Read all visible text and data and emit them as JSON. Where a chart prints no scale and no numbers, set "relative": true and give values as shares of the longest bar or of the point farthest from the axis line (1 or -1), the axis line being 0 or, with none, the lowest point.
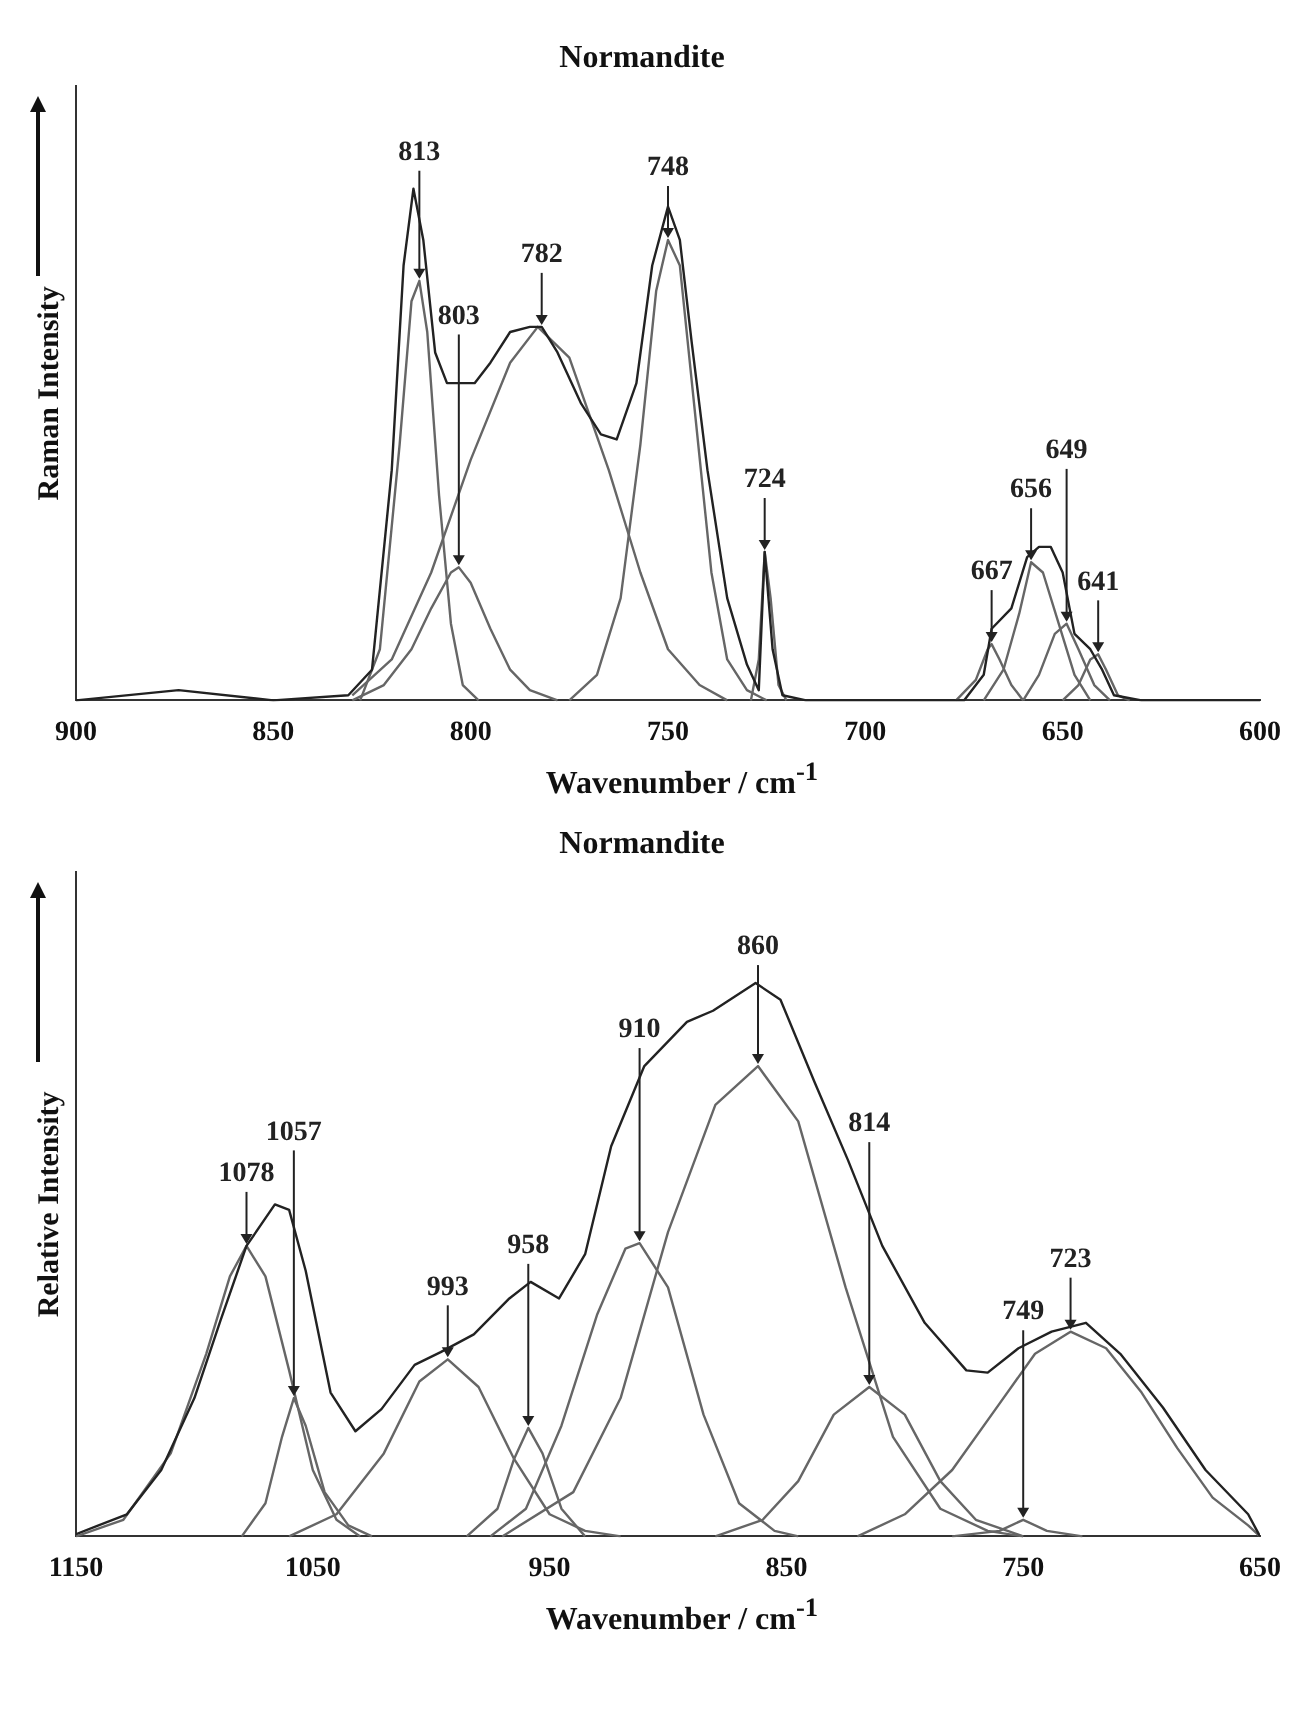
{
  "chart_data": [
    {
      "type": "line",
      "title": "Normandite",
      "xlabel": "Wavenumber / cm$^{-1}$",
      "ylabel": "Raman Intensity",
      "relative": true,
      "xlim": [
        900,
        600
      ],
      "xticks": [
        900,
        850,
        800,
        750,
        700,
        650,
        600
      ],
      "grid": false,
      "legend": false,
      "marker": "none",
      "line_style": "solid",
      "series": [
        {
          "color": "#222222",
          "x": [
            900,
            874,
            850,
            831,
            825,
            820,
            817,
            814.5,
            812,
            809,
            806,
            803,
            799,
            795,
            790,
            785,
            782,
            778,
            772,
            767,
            763,
            758,
            754,
            750,
            747,
            744,
            740,
            735,
            730,
            727,
            725.5,
            723.5,
            721,
            715,
            700,
            675,
            670,
            668,
            663,
            659,
            656,
            653,
            650,
            647,
            643,
            640,
            637,
            630,
            600
          ],
          "values": [
            0,
            0.02,
            0,
            0.01,
            0.06,
            0.45,
            0.85,
            1,
            0.9,
            0.68,
            0.62,
            0.62,
            0.62,
            0.66,
            0.72,
            0.73,
            0.73,
            0.68,
            0.58,
            0.52,
            0.51,
            0.62,
            0.85,
            0.965,
            0.9,
            0.7,
            0.45,
            0.2,
            0.07,
            0.02,
            0.29,
            0.1,
            0.01,
            0,
            0,
            0,
            0.05,
            0.14,
            0.18,
            0.28,
            0.3,
            0.3,
            0.25,
            0.13,
            0.1,
            0.06,
            0.01,
            0,
            0
          ]
        },
        {
          "color": "#666666",
          "x": [
            828,
            823,
            818,
            815,
            813,
            811,
            808,
            805,
            802,
            798
          ],
          "values": [
            0,
            0.1,
            0.5,
            0.78,
            0.82,
            0.72,
            0.4,
            0.15,
            0.03,
            0
          ]
        },
        {
          "color": "#666666",
          "x": [
            830,
            822,
            815,
            810,
            805,
            803,
            800,
            795,
            790,
            785,
            778
          ],
          "values": [
            0,
            0.03,
            0.1,
            0.18,
            0.25,
            0.26,
            0.23,
            0.14,
            0.06,
            0.02,
            0
          ]
        },
        {
          "color": "#666666",
          "x": [
            830,
            820,
            810,
            800,
            790,
            783,
            775,
            765,
            757,
            750,
            742,
            735
          ],
          "values": [
            0.01,
            0.08,
            0.25,
            0.47,
            0.66,
            0.73,
            0.67,
            0.45,
            0.25,
            0.1,
            0.03,
            0
          ]
        },
        {
          "color": "#666666",
          "x": [
            775,
            768,
            762,
            757,
            753,
            750,
            747,
            743,
            739,
            735,
            730,
            725
          ],
          "values": [
            0,
            0.05,
            0.2,
            0.5,
            0.8,
            0.9,
            0.85,
            0.55,
            0.25,
            0.08,
            0.02,
            0
          ]
        },
        {
          "color": "#666666",
          "x": [
            729,
            727,
            725.5,
            724,
            722,
            720
          ],
          "values": [
            0,
            0.08,
            0.29,
            0.2,
            0.03,
            0
          ]
        },
        {
          "color": "#666666",
          "x": [
            677,
            672,
            669,
            668,
            666,
            663,
            660
          ],
          "values": [
            0,
            0.04,
            0.1,
            0.11,
            0.08,
            0.03,
            0
          ]
        },
        {
          "color": "#666666",
          "x": [
            670,
            665,
            661,
            658,
            655,
            651,
            647,
            643
          ],
          "values": [
            0,
            0.06,
            0.17,
            0.27,
            0.25,
            0.15,
            0.05,
            0
          ]
        },
        {
          "color": "#666666",
          "x": [
            660,
            656,
            652,
            649,
            646,
            642,
            638
          ],
          "values": [
            0,
            0.05,
            0.13,
            0.15,
            0.1,
            0.03,
            0
          ]
        },
        {
          "color": "#666666",
          "x": [
            650,
            646,
            643,
            641,
            639,
            636,
            633
          ],
          "values": [
            0,
            0.03,
            0.08,
            0.09,
            0.06,
            0.01,
            0
          ]
        }
      ],
      "annotations": [
        {
          "text": "813",
          "x": 813,
          "y": 0.82
        },
        {
          "text": "803",
          "x": 803,
          "y": 0.26
        },
        {
          "text": "782",
          "x": 782,
          "y": 0.73
        },
        {
          "text": "748",
          "x": 750,
          "y": 0.9
        },
        {
          "text": "724",
          "x": 725.5,
          "y": 0.29
        },
        {
          "text": "667",
          "x": 668,
          "y": 0.11
        },
        {
          "text": "656",
          "x": 658,
          "y": 0.27
        },
        {
          "text": "649",
          "x": 649,
          "y": 0.15
        },
        {
          "text": "641",
          "x": 641,
          "y": 0.09
        }
      ]
    },
    {
      "type": "line",
      "title": "Normandite",
      "xlabel": "Wavenumber / cm$^{-1}$",
      "ylabel": "Relative Intensity",
      "relative": true,
      "xlim": [
        1150,
        650
      ],
      "xticks": [
        1150,
        1050,
        950,
        850,
        750,
        650
      ],
      "grid": false,
      "legend": false,
      "marker": "none",
      "line_style": "solid",
      "series": [
        {
          "color": "#222222",
          "x": [
            1150,
            1128.5,
            1114,
            1100,
            1089,
            1078,
            1066,
            1060,
            1053,
            1042.5,
            1032,
            1021,
            1007,
            996,
            982,
            967,
            958,
            946,
            935,
            924,
            910,
            892,
            881,
            863,
            852.5,
            838,
            824,
            809.5,
            791.6,
            774,
            765,
            752,
            738,
            723.5,
            709,
            691,
            673,
            655,
            650
          ],
          "values": [
            0.004,
            0.04,
            0.12,
            0.25,
            0.39,
            0.525,
            0.6,
            0.59,
            0.48,
            0.26,
            0.19,
            0.23,
            0.31,
            0.333,
            0.365,
            0.43,
            0.46,
            0.43,
            0.51,
            0.705,
            0.85,
            0.93,
            0.95,
            1,
            0.97,
            0.82,
            0.68,
            0.525,
            0.386,
            0.3,
            0.296,
            0.34,
            0.37,
            0.386,
            0.33,
            0.233,
            0.12,
            0.04,
            0
          ]
        },
        {
          "color": "#666666",
          "x": [
            1150,
            1130,
            1110,
            1095,
            1085,
            1078,
            1070,
            1060,
            1050,
            1040,
            1030
          ],
          "values": [
            0,
            0.03,
            0.15,
            0.33,
            0.47,
            0.525,
            0.47,
            0.3,
            0.12,
            0.03,
            0
          ]
        },
        {
          "color": "#666666",
          "x": [
            1080,
            1070,
            1063,
            1058,
            1053,
            1045,
            1035,
            1025
          ],
          "values": [
            0,
            0.06,
            0.18,
            0.25,
            0.2,
            0.08,
            0.02,
            0
          ]
        },
        {
          "color": "#666666",
          "x": [
            1060,
            1040,
            1020,
            1005,
            993,
            980,
            965,
            950,
            935,
            920
          ],
          "values": [
            0,
            0.04,
            0.15,
            0.28,
            0.32,
            0.27,
            0.14,
            0.04,
            0.01,
            0
          ]
        },
        {
          "color": "#666666",
          "x": [
            985,
            972,
            965,
            959,
            953,
            945,
            935
          ],
          "values": [
            0,
            0.05,
            0.14,
            0.196,
            0.15,
            0.05,
            0
          ]
        },
        {
          "color": "#666666",
          "x": [
            975,
            960,
            945,
            930,
            918,
            912,
            900,
            885,
            870,
            855,
            845
          ],
          "values": [
            0,
            0.05,
            0.2,
            0.4,
            0.52,
            0.53,
            0.45,
            0.22,
            0.06,
            0.01,
            0
          ]
        },
        {
          "color": "#666666",
          "x": [
            970,
            940,
            920,
            900,
            880,
            862,
            845,
            825,
            805,
            785,
            765,
            750
          ],
          "values": [
            0,
            0.08,
            0.25,
            0.55,
            0.78,
            0.85,
            0.75,
            0.45,
            0.18,
            0.05,
            0.01,
            0
          ]
        },
        {
          "color": "#666666",
          "x": [
            880,
            860,
            845,
            830,
            815,
            800,
            785,
            770,
            750
          ],
          "values": [
            0,
            0.03,
            0.1,
            0.22,
            0.27,
            0.22,
            0.1,
            0.03,
            0
          ]
        },
        {
          "color": "#666666",
          "x": [
            780,
            760,
            750,
            740,
            725
          ],
          "values": [
            0,
            0.01,
            0.03,
            0.01,
            0
          ]
        },
        {
          "color": "#666666",
          "x": [
            820,
            800,
            780,
            760,
            745,
            730,
            715,
            700,
            685,
            670,
            655,
            650
          ],
          "values": [
            0,
            0.04,
            0.12,
            0.24,
            0.33,
            0.37,
            0.34,
            0.26,
            0.16,
            0.07,
            0.02,
            0
          ]
        }
      ],
      "annotations": [
        {
          "text": "1078",
          "x": 1078,
          "y": 0.525
        },
        {
          "text": "1057",
          "x": 1058,
          "y": 0.25
        },
        {
          "text": "993",
          "x": 993,
          "y": 0.32
        },
        {
          "text": "958",
          "x": 959,
          "y": 0.196
        },
        {
          "text": "910",
          "x": 912,
          "y": 0.53
        },
        {
          "text": "860",
          "x": 862,
          "y": 0.85
        },
        {
          "text": "814",
          "x": 815,
          "y": 0.27
        },
        {
          "text": "749",
          "x": 750,
          "y": 0.03
        },
        {
          "text": "723",
          "x": 730,
          "y": 0.37
        }
      ]
    }
  ]
}
